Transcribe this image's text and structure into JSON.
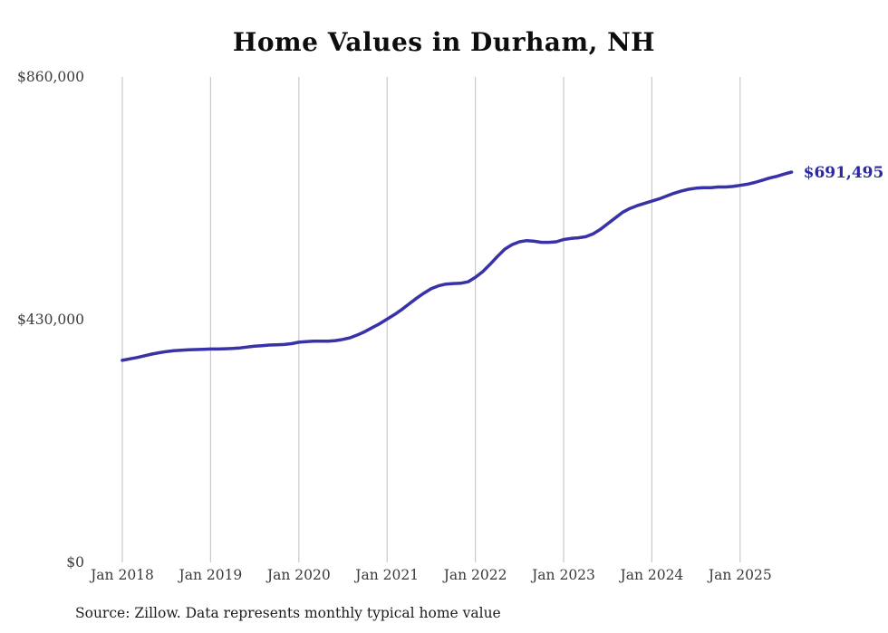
{
  "page": {
    "title": "Home Values in Durham, NH",
    "source_note": "Source: Zillow. Data represents monthly typical home value"
  },
  "colors": {
    "line": "#3732a7",
    "end_label": "#2c28a0",
    "grid": "#c9c9c9",
    "text": "#3a3a3a"
  },
  "chart_data": {
    "type": "line",
    "title": "Home Values in Durham, NH",
    "xlabel": "",
    "ylabel": "",
    "ylim": [
      0,
      860000
    ],
    "grid": "vertical-only",
    "legend": "none",
    "x_unit": "month",
    "x_start": "Jan 2018",
    "x_end": "Aug 2025",
    "x_tick_labels": [
      "Jan 2018",
      "Jan 2019",
      "Jan 2020",
      "Jan 2021",
      "Jan 2022",
      "Jan 2023",
      "Jan 2024",
      "Jan 2025"
    ],
    "y_ticks": [
      {
        "label": "$0",
        "value": 0
      },
      {
        "label": "$430,000",
        "value": 430000
      },
      {
        "label": "$860,000",
        "value": 860000
      }
    ],
    "end_label": "$691,495",
    "end_value": 691495,
    "series": [
      {
        "name": "Monthly typical home value",
        "values": [
          358000,
          360500,
          363000,
          366000,
          369000,
          371500,
          373500,
          375000,
          376000,
          376500,
          377000,
          377500,
          378000,
          378000,
          378500,
          379000,
          380000,
          381500,
          383000,
          384000,
          385000,
          385500,
          386000,
          387500,
          390000,
          391000,
          392000,
          392000,
          392000,
          393000,
          395000,
          398000,
          403000,
          409000,
          416000,
          423000,
          431000,
          439000,
          448000,
          458000,
          468000,
          477000,
          485000,
          490000,
          493000,
          494000,
          494500,
          497000,
          505000,
          515000,
          528000,
          542000,
          555000,
          563000,
          568000,
          570000,
          569000,
          567000,
          567000,
          568000,
          572000,
          574000,
          575000,
          577000,
          582000,
          590000,
          600000,
          610000,
          620000,
          627000,
          632000,
          636000,
          640000,
          644000,
          649000,
          654000,
          658000,
          661000,
          663000,
          664000,
          664000,
          665000,
          665000,
          666000,
          668000,
          670000,
          673000,
          677000,
          681000,
          684000,
          688000,
          691495
        ]
      }
    ]
  }
}
